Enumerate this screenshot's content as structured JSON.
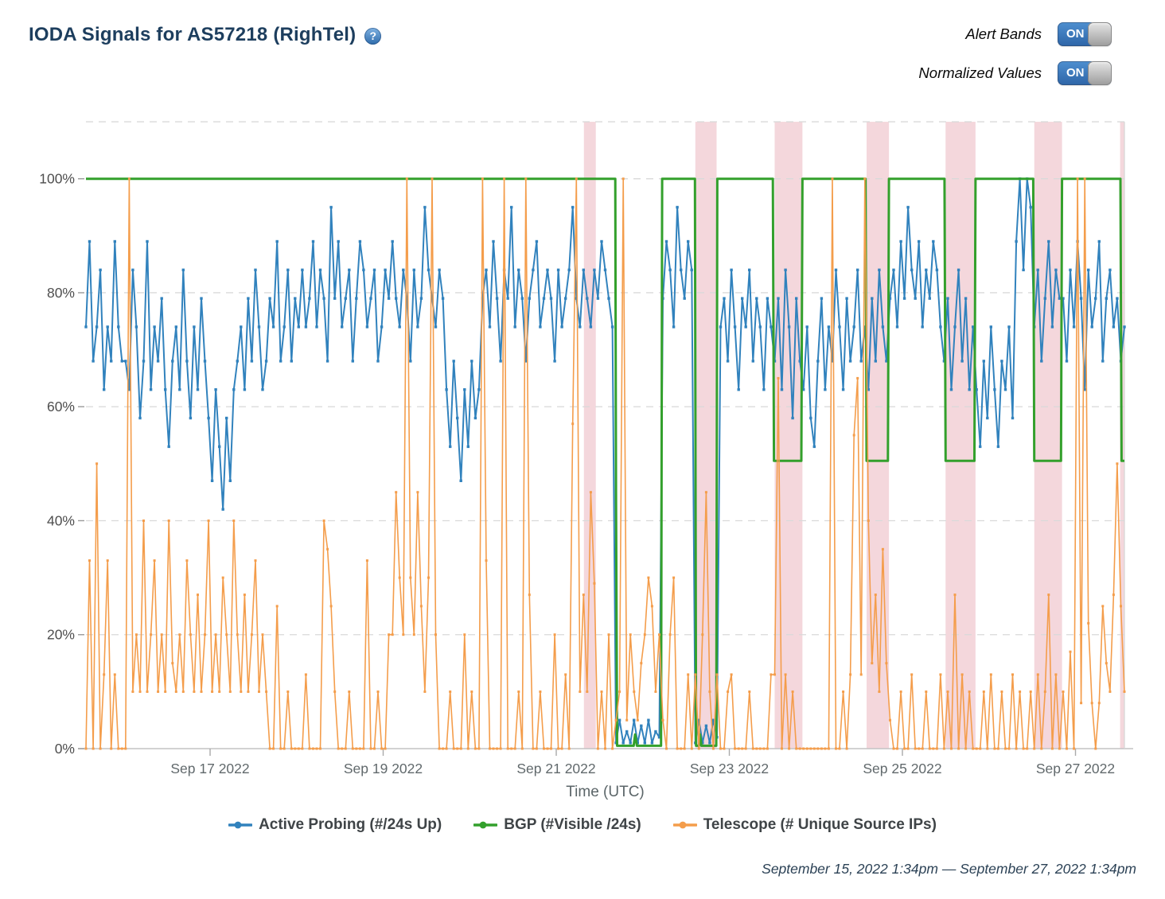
{
  "header": {
    "title": "IODA Signals for AS57218 (RighTel)",
    "help_icon": "?",
    "toggles": [
      {
        "label": "Alert Bands",
        "state": "ON"
      },
      {
        "label": "Normalized Values",
        "state": "ON"
      }
    ]
  },
  "legend": [
    {
      "label": "Active Probing (#/24s Up)",
      "color": "#3182bd"
    },
    {
      "label": "BGP (#Visible /24s)",
      "color": "#33a02c"
    },
    {
      "label": "Telescope (# Unique Source IPs)",
      "color": "#f49d4b"
    }
  ],
  "footer": {
    "range_text": "September 15, 2022 1:34pm — September 27, 2022 1:34pm"
  },
  "chart_data": {
    "type": "line",
    "title": "IODA Signals for AS57218 (RighTel)",
    "xlabel": "Time (UTC)",
    "ylabel": "",
    "normalized": true,
    "x_axis": {
      "unit": "hours since 2022-09-15 13:34 UTC",
      "range": [
        0,
        288
      ],
      "ticks": [
        {
          "t": 34.43,
          "label": "Sep 17 2022"
        },
        {
          "t": 82.43,
          "label": "Sep 19 2022"
        },
        {
          "t": 130.43,
          "label": "Sep 21 2022"
        },
        {
          "t": 178.43,
          "label": "Sep 23 2022"
        },
        {
          "t": 226.43,
          "label": "Sep 25 2022"
        },
        {
          "t": 274.43,
          "label": "Sep 27 2022"
        }
      ]
    },
    "y_axis": {
      "range": [
        0,
        110
      ],
      "ticks": [
        {
          "v": 0,
          "label": "0%"
        },
        {
          "v": 20,
          "label": "20%"
        },
        {
          "v": 40,
          "label": "40%"
        },
        {
          "v": 60,
          "label": "60%"
        },
        {
          "v": 80,
          "label": "80%"
        },
        {
          "v": 100,
          "label": "100%"
        }
      ],
      "gridlines": [
        20,
        40,
        60,
        80,
        100,
        110
      ]
    },
    "alert_bands": {
      "color": "rgba(214,108,124,0.27)",
      "intervals_hours": [
        [
          138.1,
          141.4
        ],
        [
          169.0,
          174.9
        ],
        [
          191.0,
          198.7
        ],
        [
          216.5,
          222.7
        ],
        [
          238.4,
          246.7
        ],
        [
          263.0,
          270.7
        ],
        [
          286.8,
          288.0
        ]
      ]
    },
    "series": [
      {
        "name": "Active Probing (#/24s Up)",
        "color": "#3182bd",
        "marker": 3.4,
        "stroke": 2,
        "sampling": "hourly",
        "t_start": 0,
        "t_step": 1,
        "values": [
          74,
          89,
          68,
          74,
          84,
          63,
          74,
          68,
          89,
          74,
          68,
          68,
          63,
          84,
          74,
          58,
          68,
          89,
          63,
          74,
          68,
          79,
          63,
          53,
          68,
          74,
          63,
          84,
          68,
          58,
          74,
          63,
          79,
          68,
          58,
          47,
          63,
          53,
          42,
          58,
          47,
          63,
          68,
          74,
          63,
          79,
          68,
          84,
          74,
          63,
          68,
          79,
          74,
          89,
          68,
          74,
          84,
          68,
          79,
          74,
          84,
          74,
          79,
          89,
          74,
          84,
          79,
          68,
          95,
          79,
          89,
          74,
          79,
          84,
          68,
          79,
          89,
          84,
          74,
          79,
          84,
          68,
          74,
          84,
          79,
          89,
          79,
          74,
          84,
          79,
          68,
          84,
          74,
          79,
          95,
          84,
          79,
          74,
          84,
          79,
          63,
          53,
          68,
          58,
          47,
          63,
          53,
          68,
          58,
          63,
          79,
          84,
          74,
          89,
          79,
          68,
          84,
          79,
          95,
          74,
          84,
          79,
          68,
          79,
          84,
          89,
          74,
          79,
          84,
          79,
          68,
          84,
          74,
          79,
          84,
          95,
          79,
          74,
          84,
          79,
          74,
          84,
          79,
          89,
          84,
          79,
          74,
          1,
          5,
          1,
          3,
          1,
          5,
          1,
          4,
          1,
          5,
          1,
          3,
          2,
          79,
          89,
          84,
          74,
          95,
          84,
          79,
          89,
          84,
          1,
          5,
          1,
          4,
          1,
          5,
          2,
          74,
          79,
          68,
          84,
          74,
          63,
          79,
          74,
          84,
          68,
          79,
          74,
          63,
          79,
          74,
          68,
          79,
          63,
          84,
          74,
          58,
          79,
          68,
          63,
          74,
          58,
          53,
          68,
          79,
          63,
          74,
          68,
          84,
          74,
          63,
          79,
          68,
          74,
          84,
          68,
          74,
          63,
          79,
          68,
          84,
          74,
          68,
          79,
          84,
          74,
          89,
          79,
          95,
          84,
          79,
          89,
          74,
          84,
          79,
          89,
          84,
          74,
          68,
          79,
          63,
          74,
          84,
          68,
          79,
          63,
          74,
          63,
          53,
          68,
          58,
          74,
          63,
          53,
          68,
          63,
          74,
          58,
          89,
          100,
          84,
          100,
          95,
          74,
          84,
          68,
          79,
          89,
          74,
          84,
          79,
          79,
          68,
          84,
          74,
          89,
          79,
          63,
          84,
          74,
          79,
          89,
          68,
          79,
          84,
          74,
          79,
          68,
          74
        ]
      },
      {
        "name": "BGP (#Visible /24s)",
        "color": "#33a02c",
        "marker": 0,
        "stroke": 3,
        "points": [
          [
            0,
            100
          ],
          [
            146.8,
            100
          ],
          [
            147.0,
            45
          ],
          [
            147.3,
            0.5
          ],
          [
            151.9,
            0.5
          ],
          [
            152.3,
            2.5
          ],
          [
            152.8,
            0.5
          ],
          [
            159.5,
            0.5
          ],
          [
            159.8,
            100
          ],
          [
            168.9,
            100
          ],
          [
            169.2,
            0.5
          ],
          [
            170.0,
            0.5
          ],
          [
            170.3,
            2.5
          ],
          [
            170.7,
            0.5
          ],
          [
            174.8,
            0.5
          ],
          [
            175.1,
            100
          ],
          [
            190.5,
            100
          ],
          [
            190.8,
            50.5
          ],
          [
            198.4,
            50.5
          ],
          [
            198.7,
            100
          ],
          [
            216.2,
            100
          ],
          [
            216.5,
            50.5
          ],
          [
            222.4,
            50.5
          ],
          [
            222.7,
            100
          ],
          [
            238.1,
            100
          ],
          [
            238.4,
            50.5
          ],
          [
            246.4,
            50.5
          ],
          [
            246.7,
            100
          ],
          [
            262.7,
            100
          ],
          [
            263.0,
            50.5
          ],
          [
            270.4,
            50.5
          ],
          [
            270.7,
            100
          ],
          [
            286.9,
            100
          ],
          [
            287.2,
            50.5
          ],
          [
            288,
            50.5
          ]
        ]
      },
      {
        "name": "Telescope (# Unique Source IPs)",
        "color": "#f49d4b",
        "marker": 3,
        "stroke": 1.6,
        "sampling": "hourly",
        "t_start": 0,
        "t_step": 1,
        "values": [
          0,
          33,
          0,
          50,
          0,
          13,
          33,
          0,
          13,
          0,
          0,
          0,
          100,
          10,
          20,
          10,
          40,
          10,
          20,
          33,
          10,
          20,
          10,
          40,
          15,
          10,
          20,
          10,
          33,
          20,
          10,
          27,
          10,
          20,
          40,
          10,
          20,
          10,
          30,
          20,
          10,
          40,
          20,
          10,
          27,
          10,
          20,
          33,
          10,
          20,
          10,
          0,
          0,
          25,
          0,
          0,
          10,
          0,
          0,
          0,
          0,
          13,
          0,
          0,
          0,
          0,
          40,
          35,
          25,
          10,
          0,
          0,
          0,
          10,
          0,
          0,
          0,
          0,
          33,
          0,
          0,
          10,
          0,
          0,
          20,
          20,
          45,
          30,
          20,
          100,
          30,
          20,
          45,
          25,
          10,
          30,
          100,
          20,
          0,
          0,
          0,
          10,
          0,
          0,
          0,
          20,
          0,
          10,
          0,
          0,
          100,
          33,
          0,
          0,
          0,
          0,
          100,
          0,
          0,
          0,
          10,
          0,
          100,
          27,
          0,
          0,
          10,
          0,
          0,
          0,
          20,
          0,
          0,
          13,
          0,
          57,
          100,
          10,
          27,
          10,
          45,
          29,
          0,
          10,
          0,
          20,
          0,
          5,
          10,
          100,
          5,
          20,
          10,
          5,
          15,
          20,
          30,
          25,
          10,
          20,
          5,
          0,
          20,
          30,
          0,
          0,
          0,
          13,
          0,
          13,
          0,
          20,
          45,
          10,
          0,
          13,
          0,
          0,
          10,
          13,
          0,
          0,
          0,
          0,
          10,
          0,
          0,
          0,
          0,
          0,
          13,
          13,
          65,
          0,
          13,
          0,
          10,
          0,
          0,
          0,
          0,
          0,
          0,
          0,
          0,
          0,
          0,
          100,
          0,
          0,
          10,
          0,
          13,
          55,
          65,
          13,
          100,
          40,
          15,
          27,
          10,
          35,
          15,
          5,
          0,
          0,
          10,
          0,
          0,
          13,
          0,
          0,
          0,
          10,
          0,
          0,
          0,
          13,
          0,
          10,
          0,
          27,
          0,
          13,
          0,
          10,
          0,
          0,
          0,
          10,
          0,
          13,
          0,
          0,
          10,
          0,
          0,
          13,
          0,
          10,
          0,
          0,
          10,
          0,
          13,
          0,
          10,
          27,
          0,
          13,
          0,
          10,
          0,
          17,
          0,
          100,
          8,
          100,
          22,
          8,
          0,
          8,
          25,
          15,
          10,
          27,
          50,
          25,
          10
        ]
      }
    ]
  }
}
